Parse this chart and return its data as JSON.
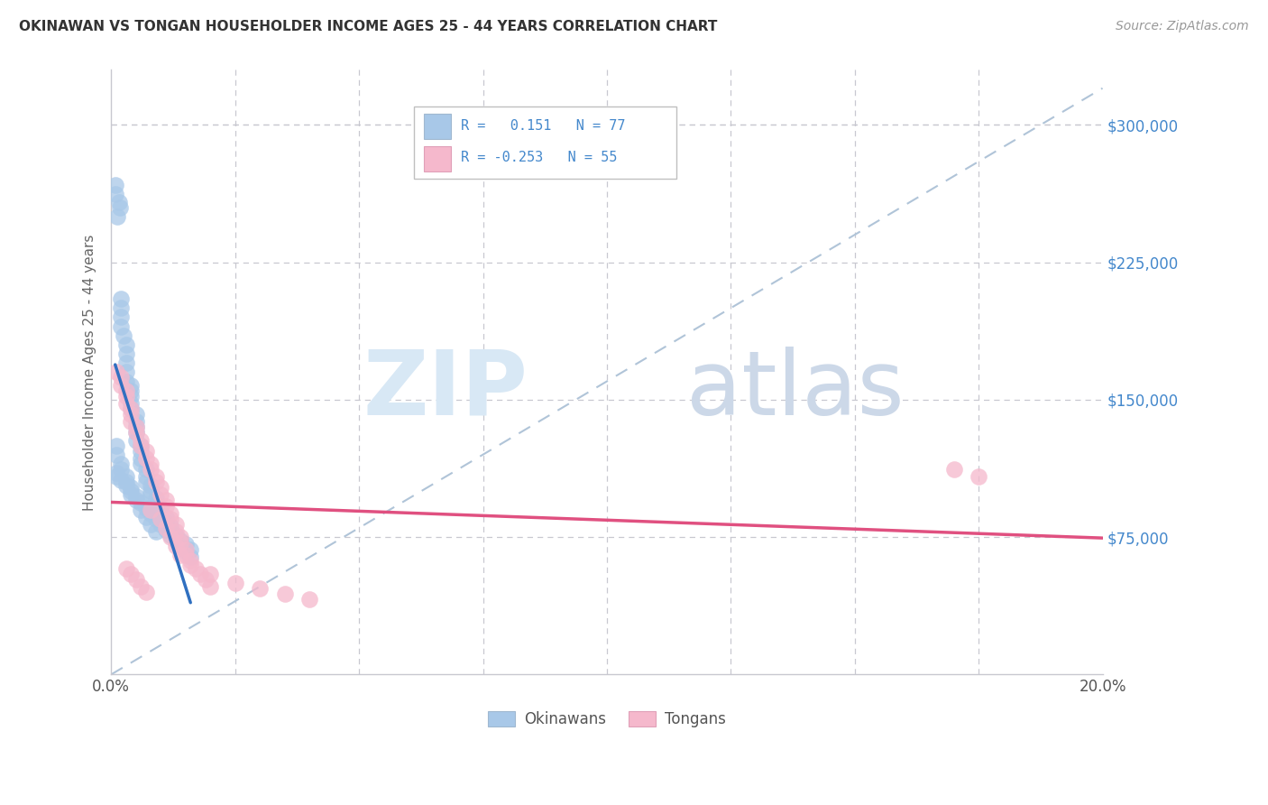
{
  "title": "OKINAWAN VS TONGAN HOUSEHOLDER INCOME AGES 25 - 44 YEARS CORRELATION CHART",
  "source": "Source: ZipAtlas.com",
  "ylabel": "Householder Income Ages 25 - 44 years",
  "xlim": [
    0.0,
    0.2
  ],
  "ylim": [
    0,
    330000
  ],
  "yticks": [
    75000,
    150000,
    225000,
    300000
  ],
  "ytick_labels": [
    "$75,000",
    "$150,000",
    "$225,000",
    "$300,000"
  ],
  "xticks": [
    0.0,
    0.025,
    0.05,
    0.075,
    0.1,
    0.125,
    0.15,
    0.175,
    0.2
  ],
  "okinawan_color": "#a8c8e8",
  "tongan_color": "#f5b8cc",
  "okinawan_line_color": "#3070c0",
  "tongan_line_color": "#e05080",
  "background_color": "#ffffff",
  "grid_color": "#c8c8d0",
  "ref_line_color": "#b0c4d8",
  "ytick_color": "#4488cc",
  "xtick_color": "#555555",
  "title_color": "#333333",
  "source_color": "#999999",
  "ylabel_color": "#666666",
  "okinawan_x": [
    0.0008,
    0.0008,
    0.0015,
    0.0018,
    0.0012,
    0.002,
    0.002,
    0.002,
    0.002,
    0.0025,
    0.003,
    0.003,
    0.003,
    0.003,
    0.003,
    0.004,
    0.004,
    0.004,
    0.004,
    0.004,
    0.005,
    0.005,
    0.005,
    0.005,
    0.005,
    0.006,
    0.006,
    0.006,
    0.006,
    0.007,
    0.007,
    0.007,
    0.008,
    0.008,
    0.008,
    0.009,
    0.009,
    0.01,
    0.01,
    0.011,
    0.011,
    0.012,
    0.012,
    0.013,
    0.014,
    0.015,
    0.016,
    0.001,
    0.001,
    0.002,
    0.002,
    0.003,
    0.003,
    0.004,
    0.004,
    0.005,
    0.006,
    0.007,
    0.008,
    0.009,
    0.001,
    0.001,
    0.002,
    0.003,
    0.004,
    0.005,
    0.006,
    0.007,
    0.008,
    0.009,
    0.01,
    0.011,
    0.012,
    0.013,
    0.014,
    0.015,
    0.016
  ],
  "okinawan_y": [
    267000,
    262000,
    258000,
    255000,
    250000,
    205000,
    200000,
    195000,
    190000,
    185000,
    180000,
    175000,
    170000,
    165000,
    160000,
    158000,
    155000,
    152000,
    148000,
    145000,
    142000,
    138000,
    135000,
    132000,
    128000,
    125000,
    122000,
    118000,
    115000,
    112000,
    108000,
    105000,
    103000,
    100000,
    98000,
    96000,
    93000,
    91000,
    88000,
    86000,
    83000,
    81000,
    78000,
    76000,
    73000,
    71000,
    68000,
    125000,
    120000,
    115000,
    112000,
    108000,
    105000,
    102000,
    98000,
    95000,
    90000,
    86000,
    82000,
    78000,
    110000,
    108000,
    106000,
    103000,
    100000,
    97000,
    94000,
    91000,
    88000,
    85000,
    82000,
    79000,
    76000,
    73000,
    70000,
    67000,
    64000
  ],
  "tongan_x": [
    0.001,
    0.002,
    0.002,
    0.003,
    0.003,
    0.003,
    0.004,
    0.004,
    0.004,
    0.005,
    0.005,
    0.006,
    0.006,
    0.007,
    0.007,
    0.008,
    0.008,
    0.009,
    0.009,
    0.01,
    0.01,
    0.011,
    0.011,
    0.012,
    0.012,
    0.013,
    0.013,
    0.014,
    0.014,
    0.015,
    0.015,
    0.016,
    0.017,
    0.018,
    0.019,
    0.02,
    0.003,
    0.004,
    0.005,
    0.006,
    0.007,
    0.008,
    0.01,
    0.011,
    0.012,
    0.013,
    0.014,
    0.016,
    0.02,
    0.025,
    0.03,
    0.035,
    0.04,
    0.17,
    0.175
  ],
  "tongan_y": [
    165000,
    162000,
    158000,
    155000,
    152000,
    148000,
    145000,
    142000,
    138000,
    135000,
    132000,
    128000,
    125000,
    122000,
    118000,
    115000,
    112000,
    108000,
    105000,
    102000,
    98000,
    95000,
    92000,
    88000,
    85000,
    82000,
    78000,
    75000,
    72000,
    68000,
    65000,
    62000,
    58000,
    55000,
    52000,
    48000,
    58000,
    55000,
    52000,
    48000,
    45000,
    90000,
    85000,
    80000,
    75000,
    70000,
    65000,
    60000,
    55000,
    50000,
    47000,
    44000,
    41000,
    112000,
    108000
  ]
}
